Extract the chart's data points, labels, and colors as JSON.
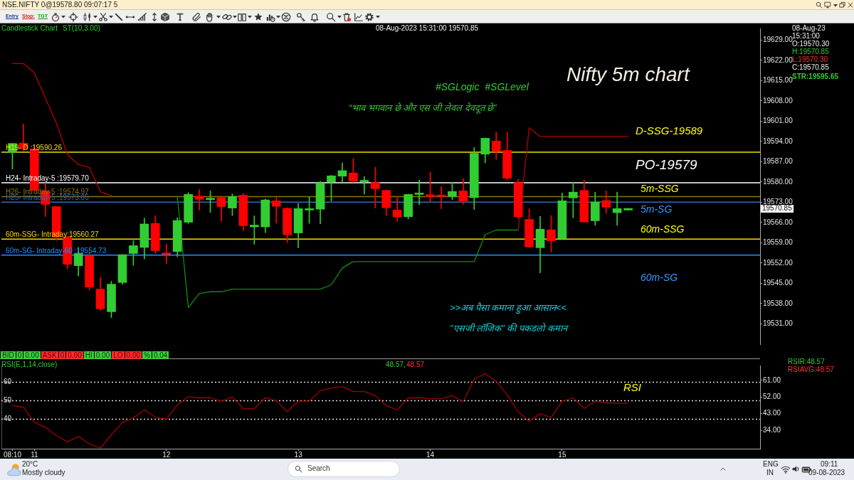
{
  "chart_data": [
    {
      "type": "candlestick",
      "title": "Nifty 5m chart",
      "x": [
        "2023-08-08T10:50",
        "2023-08-08T10:55",
        "2023-08-08T11:00",
        "2023-08-08T11:05",
        "2023-08-08T11:10",
        "2023-08-08T11:15",
        "2023-08-08T11:20",
        "2023-08-08T11:25",
        "2023-08-08T11:30",
        "2023-08-08T11:35",
        "2023-08-08T11:40",
        "2023-08-08T11:45",
        "2023-08-08T11:50",
        "2023-08-08T11:55",
        "2023-08-08T12:00",
        "2023-08-08T12:05",
        "2023-08-08T12:10",
        "2023-08-08T12:15",
        "2023-08-08T12:20",
        "2023-08-08T12:25",
        "2023-08-08T12:30",
        "2023-08-08T12:35",
        "2023-08-08T12:40",
        "2023-08-08T12:45",
        "2023-08-08T12:50",
        "2023-08-08T12:55",
        "2023-08-08T13:00",
        "2023-08-08T13:05",
        "2023-08-08T13:10",
        "2023-08-08T13:15",
        "2023-08-08T13:20",
        "2023-08-08T13:25",
        "2023-08-08T13:30",
        "2023-08-08T13:35",
        "2023-08-08T13:40",
        "2023-08-08T13:45",
        "2023-08-08T13:50",
        "2023-08-08T13:55",
        "2023-08-08T14:00",
        "2023-08-08T14:05",
        "2023-08-08T14:10",
        "2023-08-08T14:15",
        "2023-08-08T14:20",
        "2023-08-08T14:25",
        "2023-08-08T14:30",
        "2023-08-08T14:35",
        "2023-08-08T14:40",
        "2023-08-08T14:45",
        "2023-08-08T14:50",
        "2023-08-08T14:55",
        "2023-08-08T15:00",
        "2023-08-08T15:05",
        "2023-08-08T15:10",
        "2023-08-08T15:15",
        "2023-08-08T15:20",
        "2023-08-08T15:25",
        "2023-08-08T15:30"
      ],
      "ohlc": [
        [
          19590.2,
          19593.3,
          19584.4,
          19593.3
        ],
        [
          19593.4,
          19600.0,
          19590.8,
          19591.5
        ],
        [
          19591.4,
          19592.0,
          19577.0,
          19577.2
        ],
        [
          19576.9,
          19579.6,
          19568.1,
          19572.3
        ],
        [
          19571.5,
          19571.5,
          19559.8,
          19561.0
        ],
        [
          19561.0,
          19561.0,
          19550.1,
          19551.6
        ],
        [
          19551.1,
          19557.4,
          19547.5,
          19555.3
        ],
        [
          19554.6,
          19555.8,
          19542.7,
          19543.7
        ],
        [
          19543.0,
          19547.1,
          19535.6,
          19536.2
        ],
        [
          19535.2,
          19545.7,
          19533.2,
          19544.7
        ],
        [
          19545.3,
          19555.0,
          19544.7,
          19554.9
        ],
        [
          19555.3,
          19559.8,
          19551.2,
          19558.0
        ],
        [
          19557.4,
          19567.5,
          19553.4,
          19565.5
        ],
        [
          19565.7,
          19568.4,
          19555.4,
          19556.3
        ],
        [
          19555.5,
          19558.6,
          19551.9,
          19555.0
        ],
        [
          19556.0,
          19567.7,
          19554.2,
          19566.7
        ],
        [
          19566.1,
          19576.3,
          19565.7,
          19575.7
        ],
        [
          19575.1,
          19577.4,
          19570.3,
          19574.0
        ],
        [
          19573.9,
          19576.9,
          19569.5,
          19574.2
        ],
        [
          19574.6,
          19575.1,
          19566.4,
          19571.5
        ],
        [
          19571.0,
          19575.9,
          19568.4,
          19575.0
        ],
        [
          19575.4,
          19576.0,
          19563.2,
          19564.9
        ],
        [
          19564.5,
          19568.3,
          19558.5,
          19565.1
        ],
        [
          19564.5,
          19574.1,
          19562.5,
          19573.8
        ],
        [
          19573.5,
          19574.6,
          19565.8,
          19571.6
        ],
        [
          19570.9,
          19571.1,
          19559.1,
          19561.8
        ],
        [
          19562.4,
          19572.6,
          19557.3,
          19570.8
        ],
        [
          19570.3,
          19574.9,
          19565.7,
          19570.7
        ],
        [
          19570.6,
          19580.2,
          19565.6,
          19579.6
        ],
        [
          19580.0,
          19582.3,
          19573.4,
          19582.1
        ],
        [
          19582.0,
          19586.6,
          19580.0,
          19583.9
        ],
        [
          19583.1,
          19588.1,
          19579.9,
          19580.3
        ],
        [
          19580.1,
          19581.9,
          19575.8,
          19580.4
        ],
        [
          19579.8,
          19585.1,
          19571.0,
          19577.7
        ],
        [
          19577.1,
          19577.2,
          19568.4,
          19571.1
        ],
        [
          19570.3,
          19575.0,
          19566.4,
          19567.9
        ],
        [
          19568.0,
          19575.8,
          19567.2,
          19575.7
        ],
        [
          19575.7,
          19580.7,
          19572.2,
          19576.0
        ],
        [
          19575.6,
          19583.4,
          19573.1,
          19574.9
        ],
        [
          19575.3,
          19578.4,
          19570.8,
          19575.0
        ],
        [
          19575.0,
          19579.8,
          19573.9,
          19576.7
        ],
        [
          19576.9,
          19581.2,
          19572.3,
          19573.4
        ],
        [
          19574.6,
          19591.9,
          19570.5,
          19589.9
        ],
        [
          19589.6,
          19595.2,
          19586.6,
          19595.1
        ],
        [
          19594.1,
          19597.3,
          19587.8,
          19590.5
        ],
        [
          19590.9,
          19597.2,
          19580.7,
          19581.3
        ],
        [
          19579.8,
          19580.9,
          19567.5,
          19568.0
        ],
        [
          19567.1,
          19570.7,
          19557.4,
          19557.6
        ],
        [
          19557.3,
          19568.1,
          19548.6,
          19563.7
        ],
        [
          19563.5,
          19568.4,
          19555.8,
          19559.7
        ],
        [
          19560.4,
          19576.2,
          19560.3,
          19573.5
        ],
        [
          19574.5,
          19579.8,
          19567.6,
          19576.5
        ],
        [
          19577.1,
          19580.7,
          19566.1,
          19566.2
        ],
        [
          19566.6,
          19576.5,
          19565.0,
          19573.1
        ],
        [
          19573.6,
          19576.9,
          19569.1,
          19571.3
        ],
        [
          19569.4,
          19576.5,
          19565.0,
          19570.8
        ],
        [
          19570.3,
          19570.85,
          19570.3,
          19570.85
        ]
      ],
      "colors": [
        "#32cd32",
        "#ff0000",
        "#ff0000",
        "#ff0000",
        "#ff0000",
        "#ff0000",
        "#32cd32",
        "#ff0000",
        "#ff0000",
        "#32cd32",
        "#32cd32",
        "#32cd32",
        "#32cd32",
        "#ff0000",
        "#ff0000",
        "#32cd32",
        "#32cd32",
        "#ff0000",
        "#32cd32",
        "#ff0000",
        "#32cd32",
        "#ff0000",
        "#32cd32",
        "#32cd32",
        "#ff0000",
        "#ff0000",
        "#32cd32",
        "#32cd32",
        "#32cd32",
        "#32cd32",
        "#32cd32",
        "#ff0000",
        "#32cd32",
        "#ff0000",
        "#ff0000",
        "#ff0000",
        "#32cd32",
        "#32cd32",
        "#ff0000",
        "#ff0000",
        "#32cd32",
        "#ff0000",
        "#32cd32",
        "#32cd32",
        "#ff0000",
        "#ff0000",
        "#ff0000",
        "#ff0000",
        "#32cd32",
        "#ff0000",
        "#32cd32",
        "#32cd32",
        "#ff0000",
        "#32cd32",
        "#ff0000",
        "#32cd32",
        "#32cd32"
      ],
      "series": [
        {
          "type": "line",
          "color": "#b40000",
          "values": [
            19620.9,
            19620.9,
            19617.6,
            19609.0,
            19600.3,
            19589.5,
            19586.0,
            19585.0,
            19576.6,
            19575.3,
            null,
            null,
            null,
            null,
            null,
            null,
            null,
            null,
            null,
            null,
            null,
            null,
            null,
            null,
            null,
            null,
            null,
            null,
            null,
            null,
            null,
            null,
            null,
            null,
            null,
            null,
            null,
            null,
            null,
            null,
            null,
            null,
            null,
            null,
            null,
            null,
            19563.4,
            19598.7,
            19595.7,
            19595.7,
            19595.7,
            19595.7,
            19595.7,
            19595.7,
            19595.7,
            19595.7,
            19595.7
          ]
        },
        {
          "type": "line",
          "color": "#0e8f0e",
          "values": [
            null,
            null,
            null,
            null,
            null,
            null,
            null,
            null,
            null,
            null,
            null,
            null,
            null,
            null,
            null,
            19574.9,
            19536.6,
            19541.5,
            19542.1,
            19542.1,
            19543.0,
            19543.0,
            19543.0,
            19543.0,
            19543.0,
            19543.0,
            19543.0,
            19543.0,
            19543.0,
            19544.5,
            19550.3,
            19552.5,
            19552.5,
            19552.5,
            19552.5,
            19552.5,
            19552.5,
            19552.5,
            19552.5,
            19552.5,
            19552.5,
            19552.5,
            19552.5,
            19561.8,
            19563.4,
            19563.4,
            19563.4,
            null,
            null,
            null,
            null,
            null,
            null,
            null,
            null,
            null,
            null
          ]
        }
      ],
      "xlim": [
        "2023-08-08T10:45",
        "2023-08-08T16:30"
      ],
      "ylim": [
        19524,
        19633
      ],
      "yticks": [
        {
          "value": 19531,
          "label": "19531.00"
        },
        {
          "value": 19538,
          "label": "19538.00"
        },
        {
          "value": 19545,
          "label": "19545.00"
        },
        {
          "value": 19552,
          "label": "19552.00"
        },
        {
          "value": 19559,
          "label": "19559.00"
        },
        {
          "value": 19566,
          "label": "19566.00"
        },
        {
          "value": 19573,
          "label": "19573.00"
        },
        {
          "value": 19580,
          "label": "19580.00"
        },
        {
          "value": 19587,
          "label": "19587.00"
        },
        {
          "value": 19594,
          "label": "19594.00"
        },
        {
          "value": 19601,
          "label": "19601.00"
        },
        {
          "value": 19608,
          "label": "19608.00"
        },
        {
          "value": 19615,
          "label": "19615.00"
        },
        {
          "value": 19622,
          "label": "19622.00"
        },
        {
          "value": 19629,
          "label": "19629.00"
        }
      ],
      "tick_labels": "y",
      "marker": "none",
      "ref_lines": [
        {
          "axis": "y",
          "value": 19590.26,
          "label": "H19- D :19590.26",
          "color": "#f0e000"
        },
        {
          "axis": "y",
          "value": 19579.7,
          "label": "H24- Intraday-5 :19579.70",
          "color": "#ffffff"
        },
        {
          "axis": "y",
          "value": 19574.97,
          "label": "H26- Intraday-5 :19574.97",
          "color": "#8a7400"
        },
        {
          "axis": "y",
          "value": 19573.05,
          "label": "H25- Intraday-5 :19573.05",
          "color": "#2f6db5"
        },
        {
          "axis": "y",
          "value": 19560.27,
          "label": "60m-SSG- Intraday:19560.27",
          "color": "#ffd700"
        },
        {
          "axis": "y",
          "value": 19554.73,
          "label": "60m-SG- Intraday-60 :19554.73",
          "color": "#1e90ff"
        }
      ],
      "annotations": [
        "NSE.NIFTY 0@19578.80 09:07:17 5",
        "Candlestick Chart",
        "ST(10,3.00)",
        "08-Aug-2023 15:31:00 19570.85",
        "#SGLogic  #SGLevel",
        "“भाव भगवान छे और एस जी लेवल देवदूत छे”",
        "D-SSG-19589",
        "PO-19579",
        "5m-SSG",
        "5m-SG",
        "60m-SSG",
        "60m-SG",
        ">>अब पैसा कमाना हुआ आसान<<",
        "\"एसजी लॉजिक\" की पकडलो कमान",
        "08-Aug-23",
        "15:31:00",
        "O:19570.30",
        "H:19570.85",
        "L:19570.30",
        "C:19570.85",
        "STR:19595.65",
        "19570.85",
        "Entry",
        "Stop:",
        "TGT"
      ]
    },
    {
      "type": "line",
      "x": [
        "2023-08-08T10:50",
        "2023-08-08T10:55",
        "2023-08-08T11:00",
        "2023-08-08T11:05",
        "2023-08-08T11:10",
        "2023-08-08T11:15",
        "2023-08-08T11:20",
        "2023-08-08T11:25",
        "2023-08-08T11:30",
        "2023-08-08T11:35",
        "2023-08-08T11:40",
        "2023-08-08T11:45",
        "2023-08-08T11:50",
        "2023-08-08T11:55",
        "2023-08-08T12:00",
        "2023-08-08T12:05",
        "2023-08-08T12:10",
        "2023-08-08T12:15",
        "2023-08-08T12:20",
        "2023-08-08T12:25",
        "2023-08-08T12:30",
        "2023-08-08T12:35",
        "2023-08-08T12:40",
        "2023-08-08T12:45",
        "2023-08-08T12:50",
        "2023-08-08T12:55",
        "2023-08-08T13:00",
        "2023-08-08T13:05",
        "2023-08-08T13:10",
        "2023-08-08T13:15",
        "2023-08-08T13:20",
        "2023-08-08T13:25",
        "2023-08-08T13:30",
        "2023-08-08T13:35",
        "2023-08-08T13:40",
        "2023-08-08T13:45",
        "2023-08-08T13:50",
        "2023-08-08T13:55",
        "2023-08-08T14:00",
        "2023-08-08T14:05",
        "2023-08-08T14:10",
        "2023-08-08T14:15",
        "2023-08-08T14:20",
        "2023-08-08T14:25",
        "2023-08-08T14:30",
        "2023-08-08T14:35",
        "2023-08-08T14:40",
        "2023-08-08T14:45",
        "2023-08-08T14:50",
        "2023-08-08T14:55",
        "2023-08-08T15:00",
        "2023-08-08T15:05",
        "2023-08-08T15:10",
        "2023-08-08T15:15",
        "2023-08-08T15:20",
        "2023-08-08T15:25",
        "2023-08-08T15:30"
      ],
      "series": [
        {
          "color": "#a00000",
          "values": [
            47.4,
            46.4,
            38.3,
            35.6,
            31.1,
            27.7,
            30.6,
            26.5,
            24.4,
            31.5,
            38.3,
            40.6,
            45.0,
            41.0,
            40.0,
            47.7,
            52.2,
            51.4,
            51.6,
            49.5,
            52.0,
            45.7,
            45.7,
            51.5,
            50.0,
            44.1,
            49.7,
            49.7,
            55.4,
            56.8,
            57.6,
            54.9,
            54.9,
            52.7,
            47.3,
            45.0,
            51.4,
            51.6,
            51.0,
            51.1,
            52.7,
            49.5,
            61.6,
            64.6,
            60.5,
            53.1,
            44.1,
            38.7,
            42.9,
            41.0,
            49.7,
            51.5,
            45.7,
            49.7,
            48.8,
            48.6,
            48.6
          ]
        }
      ],
      "xlim": [
        "2023-08-08T10:45",
        "2023-08-08T16:30"
      ],
      "xticks": [
        {
          "value": "2023-08-08T10:50",
          "label": "08:10"
        },
        {
          "value": "2023-08-08T11:00",
          "label": "11"
        },
        {
          "value": "2023-08-08T12:00",
          "label": "12"
        },
        {
          "value": "2023-08-08T13:00",
          "label": "13"
        },
        {
          "value": "2023-08-08T14:00",
          "label": "14"
        },
        {
          "value": "2023-08-08T15:00",
          "label": "15"
        }
      ],
      "ylim": [
        24,
        69
      ],
      "yticks": [
        60,
        50,
        40
      ],
      "y2lim": [
        24,
        69
      ],
      "y2ticks": [
        {
          "value": 61,
          "label": "61.00"
        },
        {
          "value": 52,
          "label": "52.00"
        },
        {
          "value": 43,
          "label": "43.00"
        },
        {
          "value": 34,
          "label": "34.00"
        }
      ],
      "marker": "none",
      "ref_lines": [
        {
          "axis": "y",
          "value": 60,
          "color": "#e0e0e0",
          "line_style": "dotted"
        },
        {
          "axis": "y",
          "value": 50,
          "color": "#e0e0e0",
          "line_style": "dotted"
        },
        {
          "axis": "y",
          "value": 40,
          "color": "#e0e0e0",
          "line_style": "dotted"
        }
      ],
      "annotations": [
        "BID",
        "0",
        "0.00",
        "ASK",
        "0",
        "0.00",
        "HI",
        "0.00",
        "LO",
        "0.00",
        "%",
        "0.04",
        "RSI(E,1,14,close)",
        "48.57,",
        "48.57",
        "RSIR:48.57",
        "RSIAVG:48.57",
        "RSI",
        "20°C",
        "Mostly cloudy",
        "Search",
        "ENG",
        "IN",
        "09:11",
        "09-08-2023"
      ]
    }
  ]
}
